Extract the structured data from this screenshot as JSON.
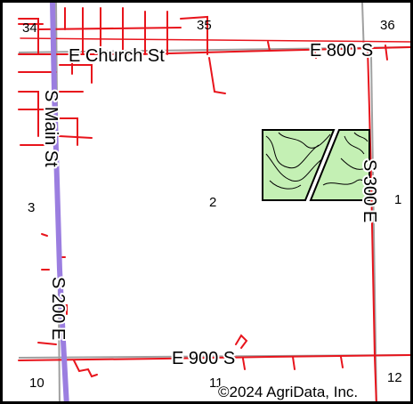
{
  "map": {
    "roads": {
      "church_st": "E Church St",
      "e_800_s": "E 800 S",
      "s_main_st": "S Main St",
      "s_200_e": "S 200 E",
      "s_300_e": "S 300 E",
      "e_900_s": "E 900 S"
    },
    "sections": {
      "s34": "34",
      "s35": "35",
      "s36": "36",
      "s3": "3",
      "s2": "2",
      "s1": "1",
      "s10": "10",
      "s11": "11",
      "s12": "12"
    },
    "copyright": "©2024 AgriData, Inc.",
    "colors": {
      "road_red": "#e8141c",
      "section_gray": "#a0a0a0",
      "highway_purple": "#9b7ee0",
      "field_fill": "#c4f0b4",
      "field_outline": "#000000",
      "border": "#000000"
    }
  }
}
